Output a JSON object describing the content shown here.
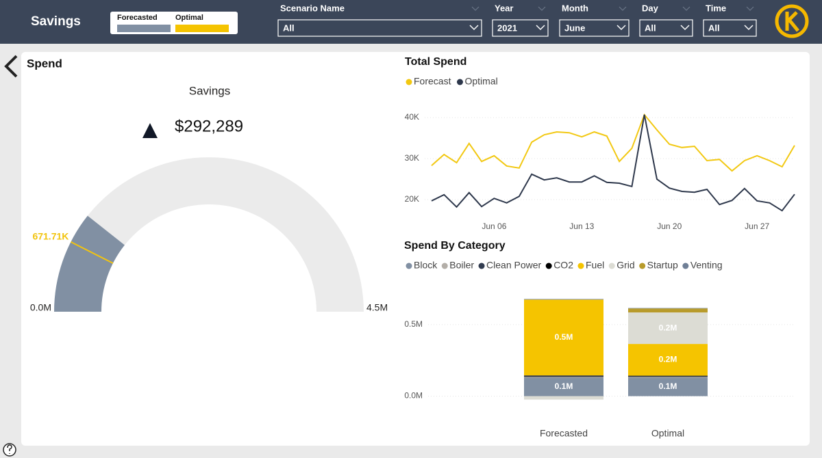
{
  "header": {
    "title": "Savings",
    "legend": [
      {
        "name": "Forecasted",
        "color": "#8190a3"
      },
      {
        "name": "Optimal",
        "color": "#f5c400"
      }
    ]
  },
  "filters": [
    {
      "label": "Scenario Name",
      "value": "All"
    },
    {
      "label": "Year",
      "value": "2021"
    },
    {
      "label": "Month",
      "value": "June"
    },
    {
      "label": "Day",
      "value": "All"
    },
    {
      "label": "Time",
      "value": "All"
    }
  ],
  "panel": {
    "title": "Spend"
  },
  "chart_data": [
    {
      "type": "gauge",
      "title": "Savings",
      "kpi": {
        "value": 292289,
        "label": "$292,289"
      },
      "values": [
        960000
      ],
      "color": "#8190a3",
      "track_color": "#ebebeb",
      "target": {
        "value": 671710,
        "label": "671.71K"
      },
      "target_color": "#f2c40f",
      "ylim": [
        0,
        4500000
      ],
      "yticks": [
        {
          "value": 0,
          "label": "0.0M"
        },
        {
          "value": 4500000,
          "label": "4.5M"
        }
      ]
    },
    {
      "type": "line",
      "title": "Total Spend",
      "x": [
        1,
        2,
        3,
        4,
        5,
        6,
        7,
        8,
        9,
        10,
        11,
        12,
        13,
        14,
        15,
        16,
        17,
        18,
        19,
        20,
        21,
        22,
        23,
        24,
        25,
        26,
        27,
        28,
        29,
        30
      ],
      "xlim": [
        1,
        30
      ],
      "xticks": [
        {
          "value": 6,
          "label": "Jun 06"
        },
        {
          "value": 13,
          "label": "Jun 13"
        },
        {
          "value": 20,
          "label": "Jun 20"
        },
        {
          "value": 27,
          "label": "Jun 27"
        }
      ],
      "ylim": [
        16000,
        42000
      ],
      "yticks": [
        {
          "value": 20000,
          "label": "20K"
        },
        {
          "value": 30000,
          "label": "30K"
        },
        {
          "value": 40000,
          "label": "40K"
        }
      ],
      "grid": true,
      "series": [
        {
          "name": "Forecast",
          "color": "#f2c811",
          "values": [
            28300,
            31000,
            29000,
            33700,
            29300,
            30700,
            28200,
            27700,
            34000,
            35800,
            36500,
            36300,
            35300,
            36500,
            35500,
            29300,
            32500,
            40700,
            37000,
            33500,
            32700,
            33000,
            29500,
            29800,
            27000,
            29500,
            30700,
            29500,
            28000,
            33200
          ]
        },
        {
          "name": "Optimal",
          "color": "#2d374b",
          "values": [
            19700,
            21200,
            18200,
            21700,
            18300,
            20300,
            19200,
            20800,
            26200,
            24800,
            25300,
            24300,
            24300,
            25800,
            24200,
            24000,
            23200,
            40700,
            25000,
            22800,
            22000,
            21800,
            22500,
            18800,
            19800,
            22700,
            19700,
            19200,
            17300,
            21300
          ]
        }
      ]
    },
    {
      "type": "stacked_bar",
      "title": "Spend By Category",
      "categories": [
        "Forecasted",
        "Optimal"
      ],
      "ylim": [
        -50000,
        700000
      ],
      "yticks": [
        {
          "value": 0,
          "label": "0.0M"
        },
        {
          "value": 500000,
          "label": "0.5M"
        }
      ],
      "grid": true,
      "series": [
        {
          "name": "Block",
          "color": "#8190a3",
          "values": [
            129000,
            130000
          ],
          "value_labels": [
            "0.1M",
            "0.1M"
          ]
        },
        {
          "name": "Boiler",
          "color": "#b3aea8",
          "values": [
            5000,
            4000
          ]
        },
        {
          "name": "Clean Power",
          "color": "#323c50",
          "values": [
            8000,
            7000
          ]
        },
        {
          "name": "CO2",
          "color": "#000000",
          "values": [
            3000,
            2000
          ]
        },
        {
          "name": "Fuel",
          "color": "#f5c400",
          "values": [
            530000,
            222000
          ],
          "value_labels": [
            "0.5M",
            "0.2M"
          ]
        },
        {
          "name": "Grid",
          "color": "#dcdcd4",
          "values": [
            -24000,
            220000
          ],
          "value_labels": [
            null,
            "0.2M"
          ]
        },
        {
          "name": "Startup",
          "color": "#b89b2b",
          "values": [
            0,
            28000
          ]
        },
        {
          "name": "Venting",
          "color": "#6f7f96",
          "values": [
            4000,
            3000
          ]
        }
      ]
    }
  ]
}
